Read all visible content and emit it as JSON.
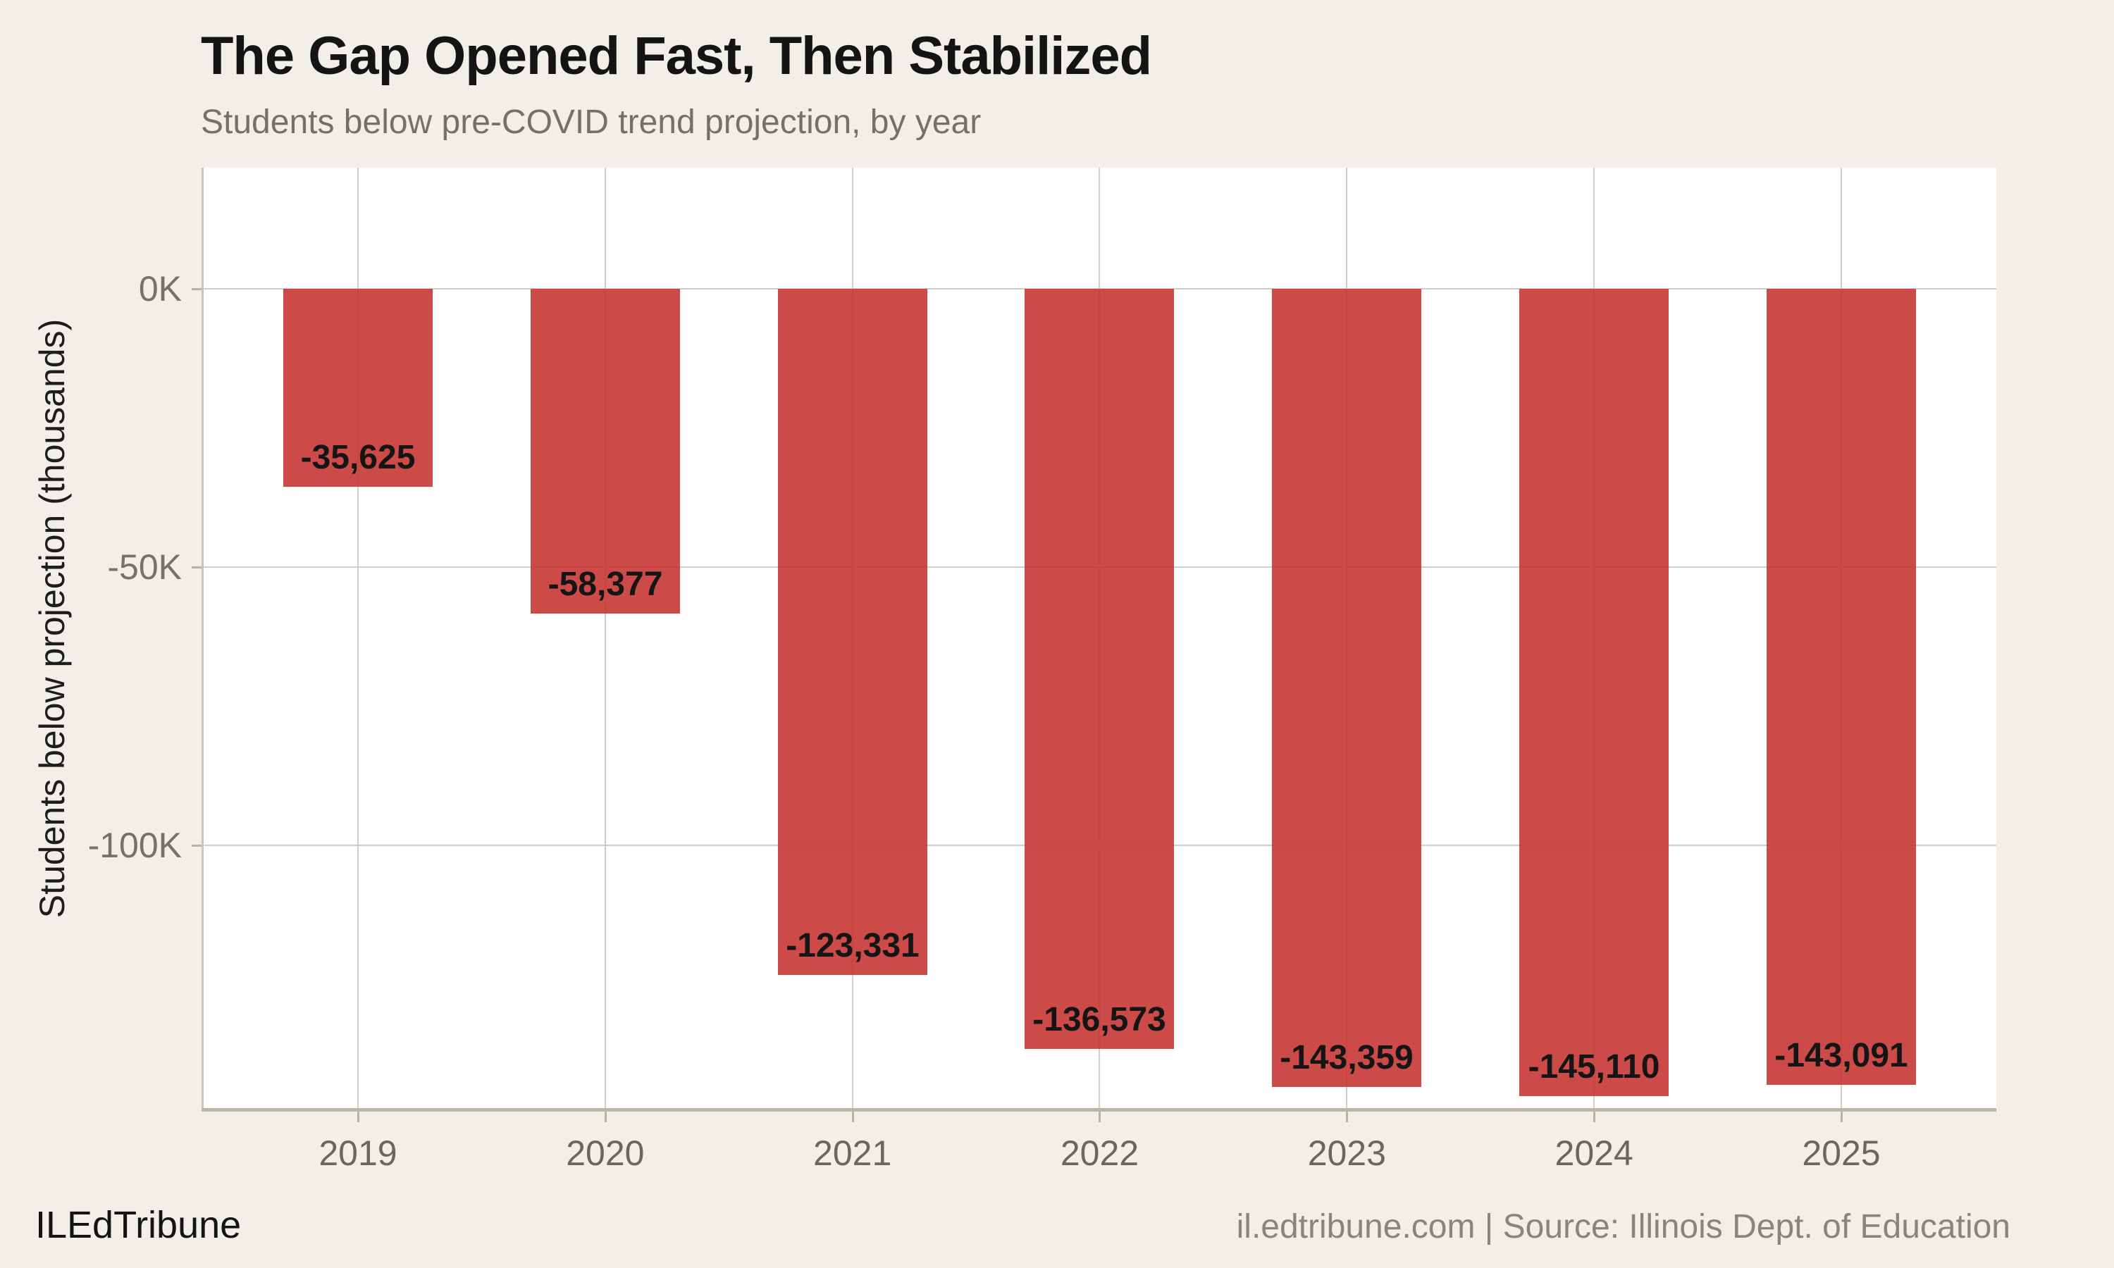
{
  "chart_data": {
    "type": "bar",
    "title": "The Gap Opened Fast, Then Stabilized",
    "subtitle": "Students below pre-COVID trend projection, by year",
    "categories": [
      "2019",
      "2020",
      "2021",
      "2022",
      "2023",
      "2024",
      "2025"
    ],
    "values": [
      -35625,
      -58377,
      -123331,
      -136573,
      -143359,
      -145110,
      -143091
    ],
    "bar_labels": [
      "-35,625",
      "-58,377",
      "-123,331",
      "-136,573",
      "-143,359",
      "-145,110",
      "-143,091"
    ],
    "xlabel": "",
    "ylabel": "Students below projection (thousands)",
    "yticks": [
      {
        "value": 0,
        "label": "0K"
      },
      {
        "value": -50000,
        "label": "-50K"
      },
      {
        "value": -100000,
        "label": "-100K"
      }
    ],
    "ylim": [
      -147700,
      21800
    ],
    "grid": true,
    "legend": false,
    "bar_color": "#cd4a47"
  },
  "footer": {
    "brand": "ILEdTribune",
    "source": "il.edtribune.com | Source: Illinois Dept. of Education"
  },
  "colors": {
    "background": "#f2efe9",
    "plot_background": "#ffffff",
    "bar_fill": "rgba(199,54,51,0.9)",
    "gridline": "#d3cec5",
    "spine": "#cbc5ba",
    "axis_line": "#bcb5a9",
    "tick": "#b9b2a6",
    "title_text": "#141414",
    "subtitle_text": "#757069",
    "ytick_text": "#76716b",
    "xtick_text": "#6b665f",
    "value_label_text": "#151515",
    "ylabel_text": "#1d1d1d",
    "brand_text": "#141414",
    "source_text": "#8a847c"
  }
}
